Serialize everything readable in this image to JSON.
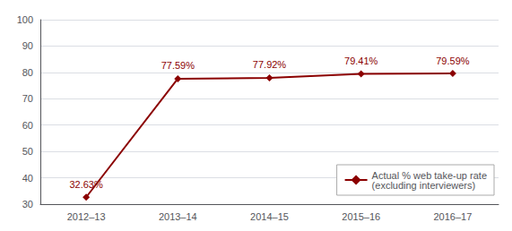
{
  "chart_data": {
    "type": "line",
    "categories": [
      "2012–13",
      "2013–14",
      "2014–15",
      "2015–16",
      "2016–17"
    ],
    "series": [
      {
        "name": "Actual % web take-up rate\n(excluding interviewers)",
        "color": "#8B0000",
        "marker": "diamond",
        "values": [
          32.63,
          77.59,
          77.92,
          79.41,
          79.59
        ],
        "value_labels": [
          "32.63%",
          "77.59%",
          "77.92%",
          "79.41%",
          "79.59%"
        ]
      }
    ],
    "ylim": [
      30,
      100
    ],
    "yticks": [
      30,
      40,
      50,
      60,
      70,
      80,
      90,
      100
    ],
    "grid": true,
    "legend": "lower right",
    "data_labels": true
  }
}
